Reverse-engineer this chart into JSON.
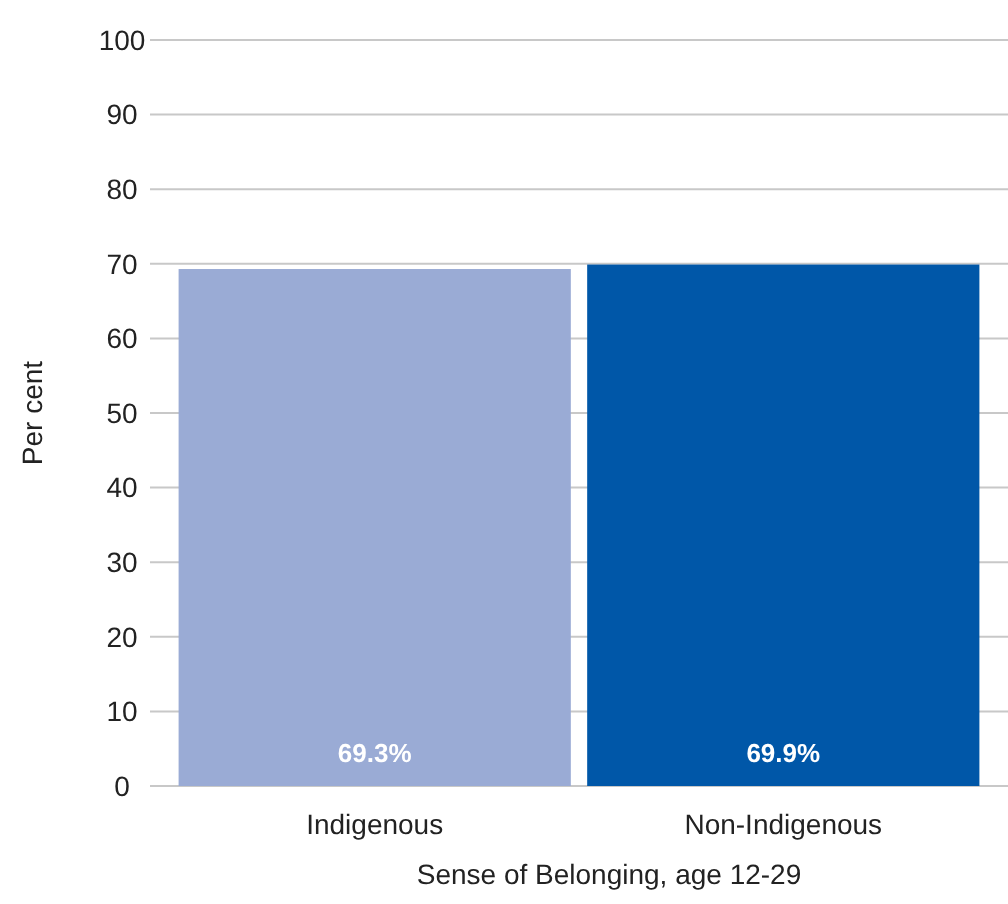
{
  "chart_data": {
    "type": "bar",
    "xlabel": "Sense of Belonging, age 12-29",
    "ylabel": "Per cent",
    "categories": [
      "Indigenous",
      "Non-Indigenous"
    ],
    "values": [
      69.3,
      69.9
    ],
    "colors": [
      "#9aabd5",
      "#0057a8"
    ],
    "value_labels": [
      "69.3%",
      "69.9%"
    ],
    "ylim": [
      0,
      100
    ],
    "yticks": [
      0,
      10,
      20,
      30,
      40,
      50,
      60,
      70,
      80,
      90,
      100
    ],
    "grid": "y"
  }
}
